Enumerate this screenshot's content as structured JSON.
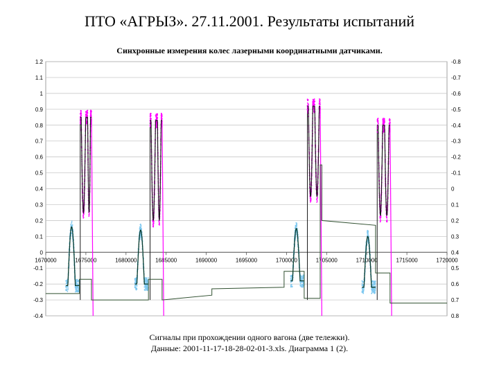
{
  "title": "ПТО «АГРЫЗ». 27.11.2001. Результаты испытаний",
  "caption_line1": "Сигналы при прохождении одного вагона (две тележки).",
  "caption_line2": "Данные: 2001-11-17-18-28-02-01-3.xls. Диаграмма 1 (2).",
  "colors": {
    "magenta": "#ff00ff",
    "lightblue": "#7ec8f0",
    "dark": "#1a1a1a",
    "stepline": "#2f4f2f",
    "grid": "#bfbfbf"
  },
  "chart_data": {
    "type": "scatter",
    "title": "Синхронные измерения колес лазерными координатными датчиками.",
    "xlabel": "",
    "ylabel": "",
    "xlim": [
      1670000,
      1720000
    ],
    "ylim": [
      -0.4,
      1.2
    ],
    "y2lim": [
      0.8,
      -0.8
    ],
    "grid": true,
    "x_ticks": [
      "1670000",
      "1675000",
      "1680000",
      "1685000",
      "1690000",
      "1695000",
      "1700000",
      "1705000",
      "1710000",
      "1715000",
      "1720000"
    ],
    "y_ticks": [
      "1.2",
      "1.1",
      "1",
      "0.9",
      "0.8",
      "0.7",
      "0.6",
      "0.5",
      "0.4",
      "0.3",
      "0.2",
      "0.1",
      "0",
      "-0.1",
      "-0.2",
      "-0.3",
      "-0.4"
    ],
    "y2_ticks": [
      "-0.8",
      "-0.7",
      "-0.6",
      "-0.5",
      "-0.4",
      "-0.3",
      "-0.2",
      "-0.1",
      "0",
      "0.1",
      "0.2",
      "0.3",
      "0.4",
      "0.5",
      "0.6",
      "0.7",
      "0.8"
    ],
    "upper_bursts": [
      {
        "x": [
          1674300,
          1675100,
          1675700
        ],
        "top": 0.85,
        "dip": 0.25
      },
      {
        "x": [
          1683000,
          1683800,
          1684500
        ],
        "top": 0.83,
        "dip": 0.2
      },
      {
        "x": [
          1702600,
          1703400,
          1704200
        ],
        "top": 0.92,
        "dip": 0.35
      },
      {
        "x": [
          1711300,
          1712100,
          1712900
        ],
        "top": 0.8,
        "dip": 0.23
      }
    ],
    "lower_pulses": [
      {
        "x": [
          1672500,
          1673300,
          1674200
        ],
        "peak": 0.16,
        "base": -0.21
      },
      {
        "x": [
          1681100,
          1681900,
          1682800
        ],
        "peak": 0.14,
        "base": -0.2
      },
      {
        "x": [
          1700500,
          1701300,
          1702200
        ],
        "peak": 0.15,
        "base": -0.18
      },
      {
        "x": [
          1709400,
          1710200,
          1711100
        ],
        "peak": 0.1,
        "base": -0.22
      }
    ],
    "step_line": [
      [
        1670000,
        -0.26
      ],
      [
        1674200,
        -0.26
      ],
      [
        1674200,
        -0.17
      ],
      [
        1675700,
        -0.17
      ],
      [
        1675700,
        -0.3
      ],
      [
        1682800,
        -0.3
      ],
      [
        1682800,
        -0.17
      ],
      [
        1684500,
        -0.17
      ],
      [
        1684500,
        -0.3
      ],
      [
        1690700,
        -0.27
      ],
      [
        1690700,
        -0.23
      ],
      [
        1699700,
        -0.22
      ],
      [
        1699700,
        -0.12
      ],
      [
        1702200,
        -0.12
      ],
      [
        1702200,
        -0.29
      ],
      [
        1704200,
        -0.29
      ],
      [
        1704200,
        0.55
      ],
      [
        1704400,
        0.55
      ],
      [
        1704400,
        0.2
      ],
      [
        1711100,
        0.17
      ],
      [
        1711100,
        -0.13
      ],
      [
        1712900,
        -0.13
      ],
      [
        1712900,
        -0.32
      ],
      [
        1720000,
        -0.32
      ]
    ]
  }
}
